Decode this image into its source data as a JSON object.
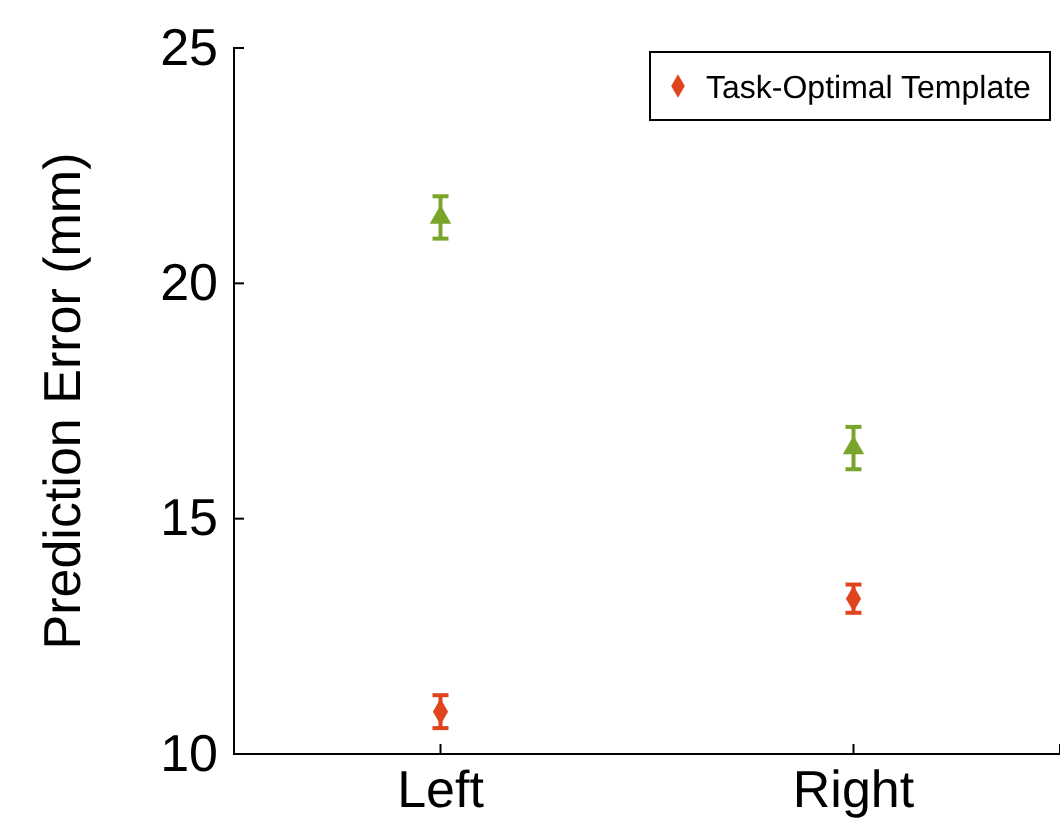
{
  "chart_data": {
    "type": "scatter",
    "ylabel": "Prediction Error (mm)",
    "categories": [
      "Left",
      "Right"
    ],
    "ylim": [
      10,
      25
    ],
    "yticks": [
      10,
      15,
      20,
      25
    ],
    "legend": "top right",
    "grid": false,
    "series": [
      {
        "color": "#7aa52a",
        "marker": "triangle",
        "values": [
          21.4,
          16.5
        ],
        "errors": [
          0.45,
          0.45
        ]
      },
      {
        "name": "Task-Optimal Template",
        "color": "#e0441c",
        "marker": "diamond",
        "values": [
          10.9,
          13.3
        ],
        "errors": [
          0.35,
          0.3
        ]
      }
    ]
  }
}
